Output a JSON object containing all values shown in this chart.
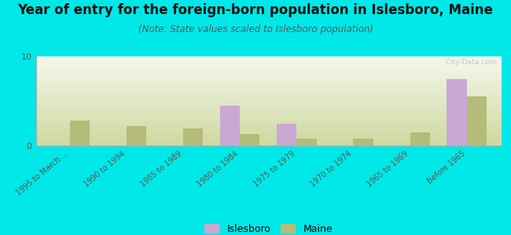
{
  "title": "Year of entry for the foreign-born population in Islesboro, Maine",
  "subtitle": "(Note: State values scaled to Islesboro population)",
  "categories": [
    "1995 to March ...",
    "1990 to 1994",
    "1985 to 1989",
    "1980 to 1984",
    "1975 to 1979",
    "1970 to 1974",
    "1965 to 1969",
    "Before 1965"
  ],
  "islesboro": [
    0,
    0,
    0,
    4.5,
    2.5,
    0,
    0,
    7.5
  ],
  "maine": [
    2.8,
    2.2,
    1.9,
    1.3,
    0.8,
    0.8,
    1.5,
    5.5
  ],
  "islesboro_color": "#c9a8d4",
  "maine_color": "#b5bb78",
  "ylim": [
    0,
    10
  ],
  "ytick_vals": [
    0,
    10
  ],
  "bg_cyan": "#00e8e8",
  "plot_bg_top": "#f4f8ee",
  "plot_bg_bottom": "#cfd9a0",
  "bar_width": 0.35,
  "title_fontsize": 12,
  "subtitle_fontsize": 8.5,
  "watermark": "  City-Data.com"
}
